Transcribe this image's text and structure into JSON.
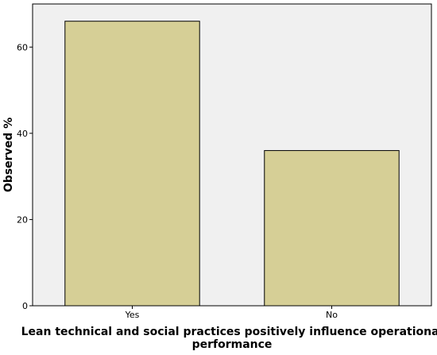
{
  "chart_data": {
    "type": "bar",
    "categories": [
      "Yes",
      "No"
    ],
    "values": [
      66,
      36
    ],
    "title": "",
    "xlabel": "Lean technical and social practices positively influence operational performance",
    "xlabel_lines": [
      "Lean technical and social practices positively influence operational",
      "performance"
    ],
    "ylabel": "Observed %",
    "ylim": [
      0,
      70
    ],
    "yticks": [
      0,
      20,
      40,
      60
    ],
    "grid": false,
    "colors": {
      "bar_fill": "#d6cf96",
      "bar_stroke": "#000000",
      "plot_background": "#f0f0f0",
      "axis": "#000000"
    }
  }
}
